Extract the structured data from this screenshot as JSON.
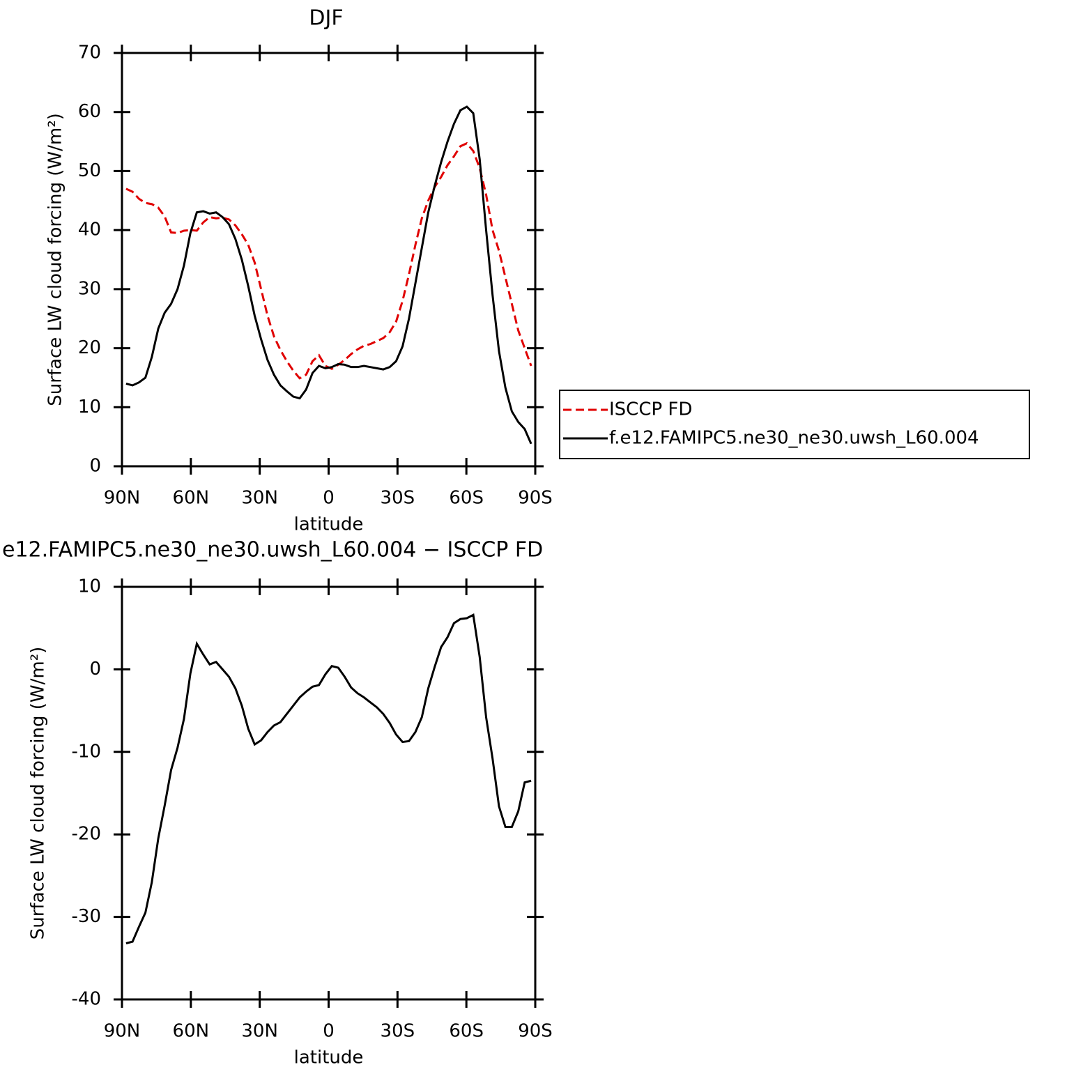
{
  "chart_data": [
    {
      "type": "line",
      "title": "DJF",
      "xlabel": "latitude",
      "ylabel": "Surface LW cloud forcing (W/m²)",
      "x": [
        88.2,
        85.4,
        82.6,
        79.8,
        77,
        74.2,
        71.4,
        68.6,
        65.8,
        63,
        60.2,
        57.4,
        54.6,
        51.8,
        49,
        46.2,
        43.4,
        40.6,
        37.8,
        35,
        32.2,
        29.4,
        26.6,
        23.8,
        21,
        18.2,
        15.4,
        12.6,
        9.8,
        7,
        4.2,
        1.4,
        -1.4,
        -4.2,
        -7,
        -9.8,
        -12.6,
        -15.4,
        -18.2,
        -21,
        -23.8,
        -26.6,
        -29.4,
        -32.2,
        -35,
        -37.8,
        -40.6,
        -43.4,
        -46.2,
        -49,
        -51.8,
        -54.6,
        -57.4,
        -60.2,
        -63,
        -65.8,
        -68.6,
        -71.4,
        -74.2,
        -77,
        -79.8,
        -82.6,
        -85.4,
        -88.2
      ],
      "xlim": [
        90,
        -90
      ],
      "xticks": [
        {
          "value": 90,
          "label": "90N"
        },
        {
          "value": 60,
          "label": "60N"
        },
        {
          "value": 30,
          "label": "30N"
        },
        0,
        {
          "value": -30,
          "label": "30S"
        },
        {
          "value": -60,
          "label": "60S"
        },
        {
          "value": -90,
          "label": "90S"
        }
      ],
      "ylim": [
        0,
        70
      ],
      "yticks": [
        0,
        10,
        20,
        30,
        40,
        50,
        60,
        70
      ],
      "legend": "right",
      "series": [
        {
          "name": "ISCCP FD",
          "color": "#e00000",
          "linestyle": "dashed",
          "values": [
            47,
            46.5,
            45.3,
            44.6,
            44.4,
            43.8,
            42.3,
            39.6,
            39.5,
            39.9,
            40,
            39.9,
            41.3,
            42.2,
            42,
            42.1,
            41.8,
            40.8,
            39.3,
            37.5,
            34.5,
            30,
            25.5,
            22,
            19.7,
            17.8,
            16.2,
            14.9,
            15.5,
            17.8,
            18.8,
            17,
            16.5,
            17.2,
            18,
            19,
            19.8,
            20.4,
            20.7,
            21.2,
            21.7,
            22.7,
            24.5,
            28,
            32.5,
            37.5,
            42,
            45,
            47.3,
            49,
            51,
            52.5,
            54.2,
            54.7,
            53.4,
            50.5,
            46,
            40,
            36.5,
            32,
            27.5,
            23,
            20,
            17
          ]
        },
        {
          "name": "f.e12.FAMIPC5.ne30_ne30.uwsh_L60.004",
          "color": "#000000",
          "linestyle": "solid",
          "values": [
            14,
            13.7,
            14.2,
            15,
            18.5,
            23.3,
            26,
            27.5,
            30,
            34,
            39.5,
            43,
            43.2,
            42.8,
            43,
            42.2,
            41,
            38.5,
            35,
            30.5,
            25.5,
            21.5,
            18,
            15.5,
            13.7,
            12.7,
            11.8,
            11.5,
            13,
            15.8,
            17,
            16.6,
            16.8,
            17.3,
            17.2,
            16.8,
            16.8,
            17,
            16.8,
            16.6,
            16.4,
            16.8,
            17.8,
            20.3,
            25,
            31,
            37,
            43,
            47.5,
            51.5,
            55,
            58,
            60.3,
            60.9,
            59.8,
            52,
            40,
            29,
            19.5,
            13.3,
            9.3,
            7.5,
            6.3,
            3.8
          ]
        }
      ]
    },
    {
      "type": "line",
      "title": "e12.FAMIPC5.ne30_ne30.uwsh_L60.004 − ISCCP FD",
      "xlabel": "latitude",
      "ylabel": "Surface LW cloud forcing (W/m²)",
      "x": [
        88.2,
        85.4,
        82.6,
        79.8,
        77,
        74.2,
        71.4,
        68.6,
        65.8,
        63,
        60.2,
        57.4,
        54.6,
        51.8,
        49,
        46.2,
        43.4,
        40.6,
        37.8,
        35,
        32.2,
        29.4,
        26.6,
        23.8,
        21,
        18.2,
        15.4,
        12.6,
        9.8,
        7,
        4.2,
        1.4,
        -1.4,
        -4.2,
        -7,
        -9.8,
        -12.6,
        -15.4,
        -18.2,
        -21,
        -23.8,
        -26.6,
        -29.4,
        -32.2,
        -35,
        -37.8,
        -40.6,
        -43.4,
        -46.2,
        -49,
        -51.8,
        -54.6,
        -57.4,
        -60.2,
        -63,
        -65.8,
        -68.6,
        -71.4,
        -74.2,
        -77,
        -79.8,
        -82.6,
        -85.4,
        -88.2
      ],
      "xlim": [
        90,
        -90
      ],
      "xticks": [
        {
          "value": 90,
          "label": "90N"
        },
        {
          "value": 60,
          "label": "60N"
        },
        {
          "value": 30,
          "label": "30N"
        },
        0,
        {
          "value": -30,
          "label": "30S"
        },
        {
          "value": -60,
          "label": "60S"
        },
        {
          "value": -90,
          "label": "90S"
        }
      ],
      "ylim": [
        -40,
        10
      ],
      "yticks": [
        -40,
        -30,
        -20,
        -10,
        0,
        10
      ],
      "series": [
        {
          "color": "#000000",
          "linestyle": "solid",
          "values": [
            -33.2,
            -33,
            -31.2,
            -29.5,
            -25.8,
            -20.5,
            -16.5,
            -12.2,
            -9.5,
            -6,
            -0.5,
            3.1,
            1.8,
            0.6,
            0.9,
            0,
            -0.9,
            -2.3,
            -4.4,
            -7.2,
            -9.1,
            -8.6,
            -7.6,
            -6.8,
            -6.4,
            -5.4,
            -4.4,
            -3.4,
            -2.7,
            -2.1,
            -1.9,
            -0.6,
            0.4,
            0.2,
            -0.9,
            -2.2,
            -2.9,
            -3.4,
            -4,
            -4.6,
            -5.4,
            -6.5,
            -7.9,
            -8.8,
            -8.7,
            -7.6,
            -5.8,
            -2.3,
            0.3,
            2.7,
            3.9,
            5.6,
            6.1,
            6.2,
            6.6,
            1.5,
            -5.8,
            -10.8,
            -16.6,
            -19.1,
            -19.1,
            -17.2,
            -13.7,
            -13.5
          ]
        }
      ]
    }
  ]
}
